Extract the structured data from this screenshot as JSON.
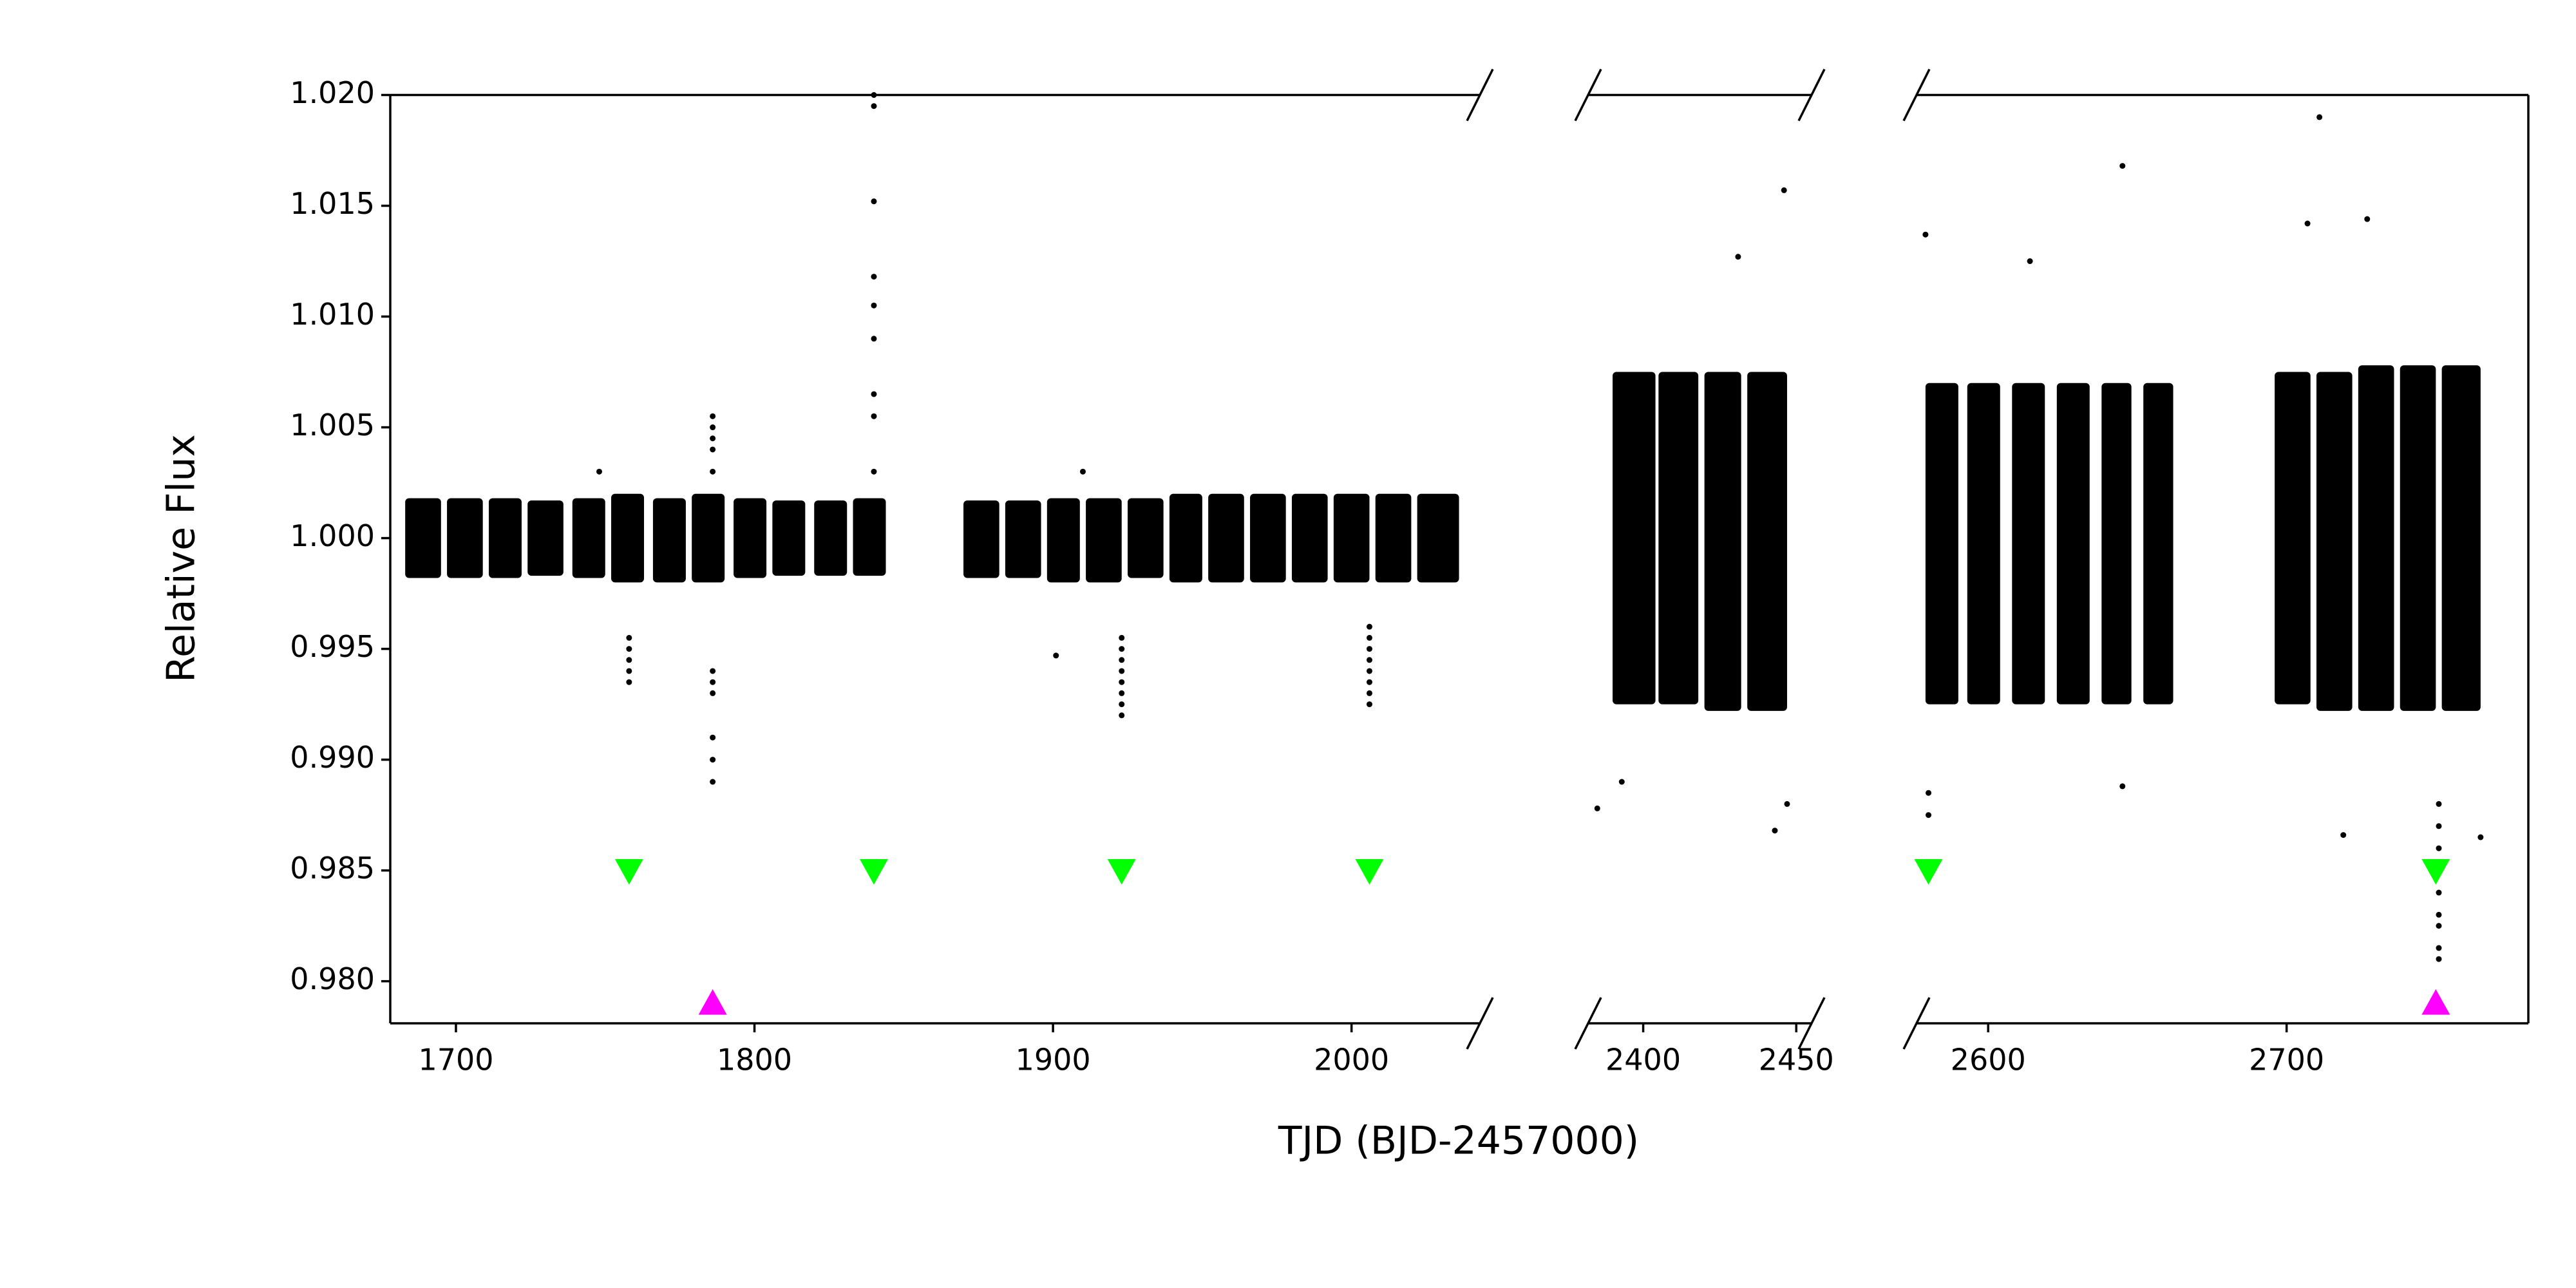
{
  "chart_data": {
    "type": "scatter",
    "xlabel": "TJD (BJD-2457000)",
    "ylabel": "Relative Flux",
    "ylim": [
      0.9781,
      1.02
    ],
    "yticks": [
      {
        "value": 0.98,
        "label": "0.980"
      },
      0.985,
      {
        "value": 0.99,
        "label": "0.990"
      },
      0.995,
      {
        "value": 1,
        "label": "1.000"
      },
      1.005,
      {
        "value": 1.01,
        "label": "1.010"
      },
      1.015,
      {
        "value": 1.02,
        "label": "1.020"
      }
    ],
    "panels": [
      {
        "xlim": [
          1678,
          2043
        ],
        "xticks": [
          1700,
          1800,
          1900,
          2000
        ]
      },
      {
        "xlim": [
          2382,
          2455
        ],
        "xticks": [
          2400,
          2450
        ]
      },
      {
        "xlim": [
          2576,
          2781
        ],
        "xticks": [
          2600,
          2700
        ]
      }
    ],
    "sectors": {
      "color": "#000000",
      "x0": [
        1683,
        1697,
        1711,
        1724,
        1739,
        1752,
        1766,
        1779,
        1793,
        1806,
        1820,
        1833,
        1870,
        1884,
        1898,
        1911,
        1925,
        1939,
        1952,
        1966,
        1980,
        1994,
        2008,
        2022,
        2390,
        2405,
        2420,
        2434,
        2579,
        2593,
        2608,
        2623,
        2638,
        2652,
        2696,
        2710,
        2724,
        2738,
        2752
      ],
      "x1": [
        1695,
        1709,
        1722,
        1736,
        1750,
        1763,
        1777,
        1790,
        1804,
        1817,
        1831,
        1844,
        1882,
        1896,
        1909,
        1923,
        1937,
        1950,
        1964,
        1978,
        1992,
        2006,
        2020,
        2036,
        2404,
        2418,
        2432,
        2447,
        2590,
        2604,
        2619,
        2634,
        2648,
        2662,
        2708,
        2722,
        2736,
        2750,
        2765
      ],
      "low": [
        0.9982,
        0.9982,
        0.9982,
        0.9983,
        0.9982,
        0.998,
        0.998,
        0.998,
        0.9982,
        0.9983,
        0.9983,
        0.9983,
        0.9982,
        0.9982,
        0.998,
        0.998,
        0.9982,
        0.998,
        0.998,
        0.998,
        0.998,
        0.998,
        0.998,
        0.998,
        0.9925,
        0.9925,
        0.9922,
        0.9922,
        0.9925,
        0.9925,
        0.9925,
        0.9925,
        0.9925,
        0.9925,
        0.9925,
        0.9922,
        0.9922,
        0.9922,
        0.9922
      ],
      "high": [
        1.0018,
        1.0018,
        1.0018,
        1.0017,
        1.0018,
        1.002,
        1.0018,
        1.002,
        1.0018,
        1.0017,
        1.0017,
        1.0018,
        1.0017,
        1.0017,
        1.0018,
        1.0018,
        1.0018,
        1.002,
        1.002,
        1.002,
        1.002,
        1.002,
        1.002,
        1.002,
        1.0075,
        1.0075,
        1.0075,
        1.0075,
        1.007,
        1.007,
        1.007,
        1.007,
        1.007,
        1.007,
        1.0075,
        1.0075,
        1.0078,
        1.0078,
        1.0078
      ]
    },
    "points": {
      "color": "#000000",
      "x": [
        1758,
        1758,
        1758,
        1758,
        1758,
        1786,
        1786,
        1786,
        1786,
        1786,
        1786,
        1786,
        1786,
        1786,
        1786,
        1786,
        1840,
        1840,
        1840,
        1840,
        1840,
        1840,
        1840,
        1840,
        1840,
        1748,
        1901,
        1910,
        1923,
        1923,
        1923,
        1923,
        1923,
        1923,
        1923,
        1923,
        2006,
        2006,
        2006,
        2006,
        2006,
        2006,
        2006,
        2006,
        2385,
        2446,
        2443,
        2431,
        2393,
        2447,
        2579,
        2580,
        2580,
        2645,
        2645,
        2711,
        2707,
        2727,
        2719,
        2751,
        2751,
        2751,
        2751,
        2751,
        2751,
        2751,
        2751,
        2751,
        2765,
        2614
      ],
      "values": [
        0.9955,
        0.995,
        0.9945,
        0.994,
        0.9935,
        1.0055,
        1.005,
        1.0045,
        1.004,
        1.003,
        0.994,
        0.9935,
        0.993,
        0.991,
        0.99,
        0.989,
        1.02,
        1.0195,
        1.0152,
        1.0118,
        1.0105,
        1.009,
        1.0065,
        1.0055,
        1.003,
        1.003,
        0.9947,
        1.003,
        0.9955,
        0.995,
        0.9945,
        0.994,
        0.9935,
        0.993,
        0.9925,
        0.992,
        0.996,
        0.9955,
        0.995,
        0.9945,
        0.994,
        0.9935,
        0.993,
        0.9925,
        0.9878,
        1.0157,
        0.9868,
        1.0127,
        0.989,
        0.988,
        1.0137,
        0.9875,
        0.9885,
        1.0168,
        0.9888,
        1.019,
        1.0142,
        1.0144,
        0.9866,
        0.981,
        0.9815,
        0.9825,
        0.983,
        0.984,
        0.985,
        0.986,
        0.987,
        0.988,
        0.9865,
        1.0125
      ]
    },
    "markers": [
      {
        "marker": "down",
        "color": "#00ff00",
        "x": [
          1758,
          1840,
          1923,
          2006,
          2580,
          2750
        ],
        "values": [
          0.985,
          0.985,
          0.985,
          0.985,
          0.985,
          0.985
        ]
      },
      {
        "marker": "up",
        "color": "#ff00ff",
        "x": [
          1786,
          2750
        ],
        "values": [
          0.979,
          0.979
        ]
      }
    ]
  }
}
